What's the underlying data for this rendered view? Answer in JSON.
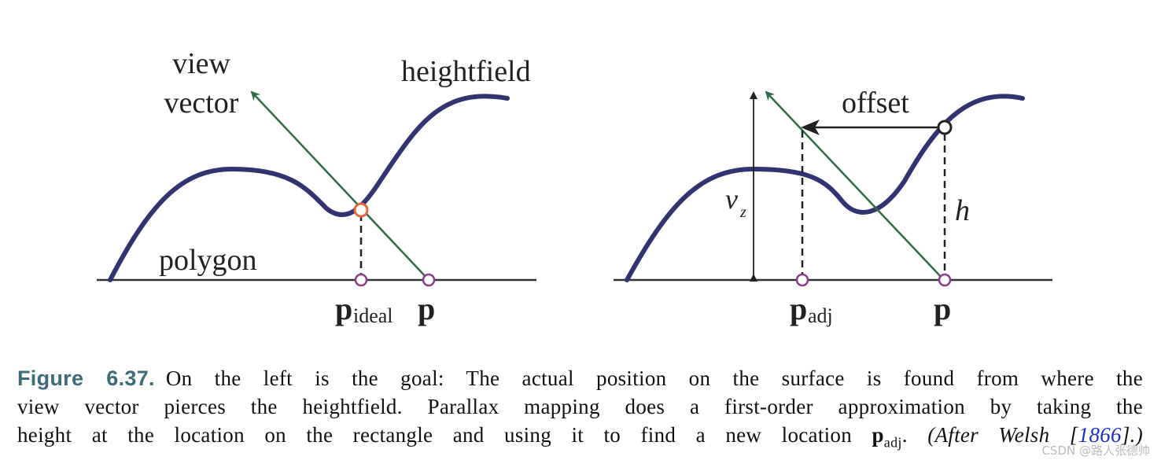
{
  "left": {
    "view_vector": [
      "view",
      "vector"
    ],
    "heightfield": "heightfield",
    "polygon": "polygon",
    "p_ideal": {
      "symbol": "p",
      "subscript": "ideal"
    },
    "p": "p"
  },
  "right": {
    "offset": "offset",
    "vz": {
      "symbol": "v",
      "subscript": "z"
    },
    "h": "h",
    "p_adj": {
      "symbol": "p",
      "subscript": "adj"
    },
    "p": "p"
  },
  "caption": {
    "label": "Figure 6.37.",
    "lines": [
      "On the left is the goal: The actual position on the surface is found from where the",
      "view vector pierces the heightfield. Parallax mapping does a first-order approximation by taking the",
      "height at the location on the rectangle and using it to find a new location"
    ],
    "symbol": "p",
    "subscript": "adj",
    "period": ".",
    "citation_open": "(After Welsh [",
    "ref": "1866",
    "citation_close": "].)"
  },
  "watermark": "CSDN @路人张德帅"
}
